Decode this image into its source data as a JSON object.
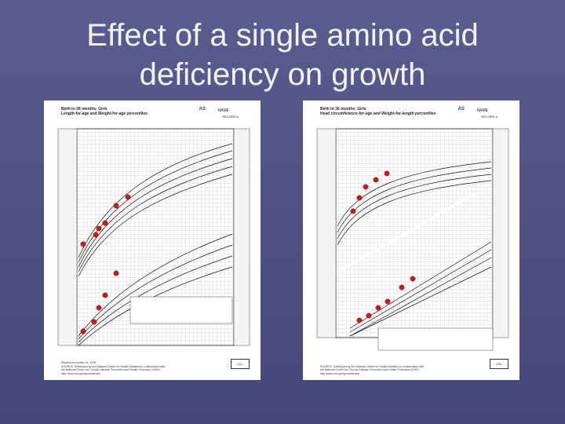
{
  "slide": {
    "title_line1": "Effect of a single amino acid",
    "title_line2": "deficiency on growth"
  },
  "charts": [
    {
      "header_line1": "Birth to 36 months: Girls",
      "header_line2": "Length-for-age and Weight-for-age percentiles",
      "name_label": "NAME",
      "initials": "AS",
      "record_label": "RECORD #",
      "footer_line1": "Revised November 21, 2000",
      "footer_line2": "SOURCE: Developed by the National Center for Health Statistics in collaboration with",
      "footer_line3": "the National Center for Chronic Disease Prevention and Health Promotion (2000).",
      "footer_line4": "http://www.cdc.gov/growthcharts",
      "logo": "CDC",
      "point_color": "#d01818"
    },
    {
      "header_line1": "Birth to 36 months: Girls",
      "header_line2": "Head circumference-for-age and Weight-for-length percentiles",
      "name_label": "NAME",
      "initials": "AS",
      "record_label": "RECORD #",
      "footer_line1": "SOURCE: Developed by the National Center for Health Statistics in collaboration with",
      "footer_line2": "the National Center for Chronic Disease Prevention and Health Promotion (2000).",
      "footer_line3": "http://www.cdc.gov/growthcharts",
      "logo": "CDC",
      "point_color": "#d01818"
    }
  ]
}
